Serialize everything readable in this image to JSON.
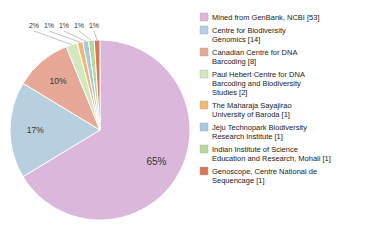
{
  "chart_data": {
    "type": "pie",
    "categories": [
      "Mined from GenBank, NCBI [53]",
      "Centre for Biodiversity\nGenomics [14]",
      "Canadian Centre for DNA\nBarcoding [8]",
      "Paul Hebert Centre for DNA\nBarcoding and Biodiversity\nStudies [2]",
      "The Maharaja Sayajirao\nUniversity of Baroda [1]",
      "Jeju Technopark Biodiversity\nResearch Institute [1]",
      "Indian Institute of Science\nEducation and Research, Mohali [1]",
      "Genoscope, Centre National de\nSequencage [1]"
    ],
    "values": [
      65,
      17,
      10,
      2,
      1,
      1,
      1,
      1
    ],
    "value_labels": [
      "65%",
      "17%",
      "10%",
      "2%",
      "1%",
      "1%",
      "1%",
      "1%"
    ],
    "colors": [
      "#dbb8db",
      "#b8cfe0",
      "#e8a898",
      "#d4e8c0",
      "#f0b870",
      "#a8c8e0",
      "#b8d898",
      "#d87858"
    ],
    "data_labels": true,
    "legend": "right"
  }
}
